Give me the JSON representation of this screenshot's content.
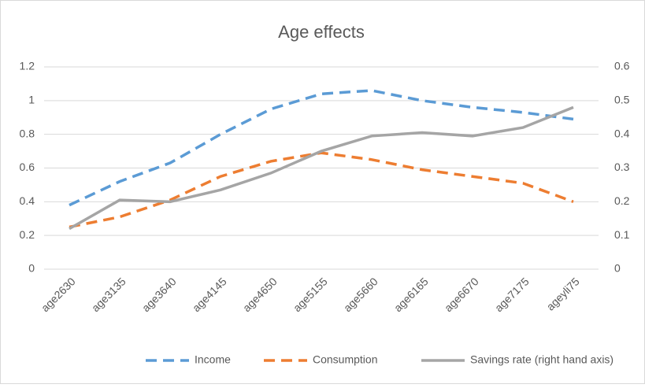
{
  "chart_data": {
    "type": "line",
    "title": "Age effects",
    "categories": [
      "age2630",
      "age3135",
      "age3640",
      "age4145",
      "age4650",
      "age5155",
      "age5660",
      "age6165",
      "age6670",
      "age7175",
      "ageyli75"
    ],
    "series": [
      {
        "name": "Income",
        "color": "#5b9bd5",
        "dash": true,
        "values": [
          0.38,
          0.52,
          0.63,
          0.8,
          0.95,
          1.04,
          1.06,
          1.0,
          0.96,
          0.93,
          0.89
        ]
      },
      {
        "name": "Consumption",
        "color": "#ed7d31",
        "dash": true,
        "values": [
          0.25,
          0.31,
          0.41,
          0.55,
          0.64,
          0.69,
          0.65,
          0.59,
          0.55,
          0.51,
          0.4
        ]
      },
      {
        "name": "Savings rate (right hand axis)",
        "color": "#a5a5a5",
        "dash": false,
        "axis": "y2",
        "values": [
          0.12,
          0.205,
          0.2,
          0.235,
          0.285,
          0.35,
          0.395,
          0.405,
          0.395,
          0.42,
          0.48
        ]
      }
    ],
    "ylim": [
      0,
      1.2
    ],
    "yticks": [
      0,
      0.2,
      0.4,
      0.6,
      0.8,
      1,
      1.2
    ],
    "y2lim": [
      0,
      0.6
    ],
    "y2ticks": [
      0,
      0.1,
      0.2,
      0.3,
      0.4,
      0.5,
      0.6
    ],
    "grid": true,
    "legend": "bottom"
  }
}
